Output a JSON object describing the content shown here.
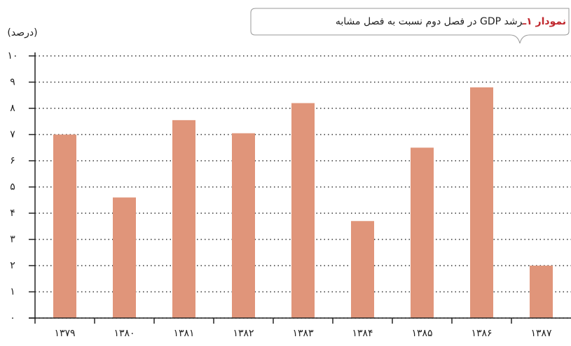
{
  "chart_data": {
    "type": "bar",
    "title_label": "نمودار ۱ـ",
    "title": "رشد GDP  در فصل دوم نسبت به فصل مشابه",
    "y_label": "(درصد)",
    "categories": [
      "۱۳۷۹",
      "۱۳۸۰",
      "۱۳۸۱",
      "۱۳۸۲",
      "۱۳۸۳",
      "۱۳۸۴",
      "۱۳۸۵",
      "۱۳۸۶",
      "۱۳۸۷"
    ],
    "values": [
      7.0,
      4.6,
      7.55,
      7.05,
      8.2,
      3.7,
      6.5,
      8.8,
      2.0
    ],
    "color": "#e0957a",
    "ylim": [
      0,
      10
    ],
    "yticks": [
      {
        "value": 0,
        "label": "۰"
      },
      {
        "value": 1,
        "label": "۱"
      },
      {
        "value": 2,
        "label": "۲"
      },
      {
        "value": 3,
        "label": "۳"
      },
      {
        "value": 4,
        "label": "۴"
      },
      {
        "value": 5,
        "label": "۵"
      },
      {
        "value": 6,
        "label": "۶"
      },
      {
        "value": 7,
        "label": "۷"
      },
      {
        "value": 8,
        "label": "۸"
      },
      {
        "value": 9,
        "label": "۹"
      },
      {
        "value": 10,
        "label": "۱۰"
      }
    ],
    "grid": true
  }
}
